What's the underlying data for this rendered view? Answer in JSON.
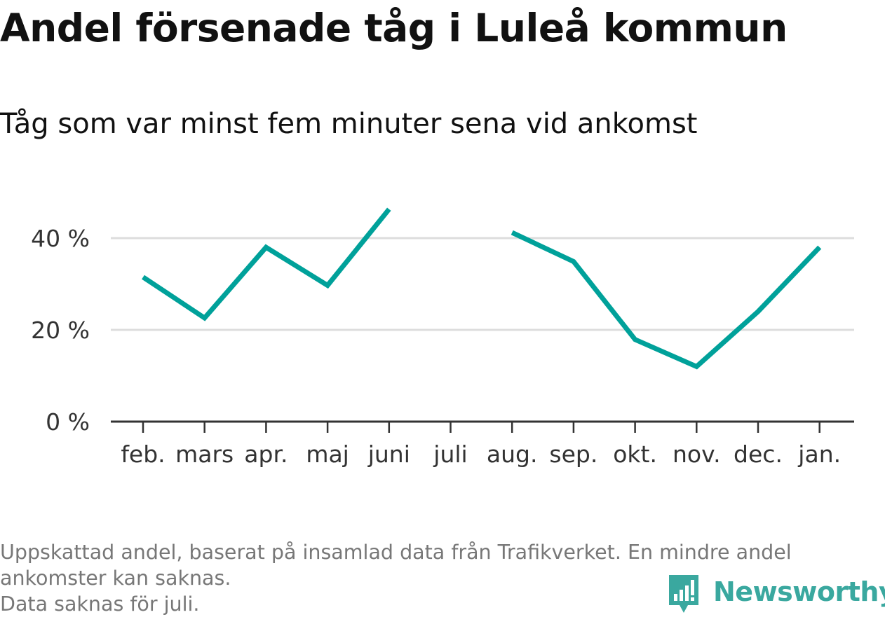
{
  "title": "Andel försenade tåg i Luleå kommun",
  "subtitle": "Tåg som var minst fem minuter sena vid ankomst",
  "footnote": {
    "line1": "Uppskattad andel, baserat på insamlad data från Trafikverket. En mindre andel",
    "line2": "ankomster kan saknas.",
    "line3": "Data saknas för juli."
  },
  "brand": {
    "name": "Newsworthy",
    "color": "#3aa89f"
  },
  "chart_data": {
    "type": "line",
    "categories": [
      "feb.",
      "mars",
      "apr.",
      "maj",
      "juni",
      "juli",
      "aug.",
      "sep.",
      "okt.",
      "nov.",
      "dec.",
      "jan."
    ],
    "series": [
      {
        "values": [
          31.5,
          22.6,
          38.0,
          29.7,
          46.3,
          null,
          41.2,
          34.9,
          17.9,
          12.0,
          24.0,
          38.0
        ],
        "color": "#00a19a"
      }
    ],
    "ylim": [
      0,
      50
    ],
    "yticks": [
      0,
      20,
      40
    ],
    "ytick_labels": [
      "0 %",
      "20 %",
      "40 %"
    ],
    "grid": true,
    "legend": "none"
  }
}
